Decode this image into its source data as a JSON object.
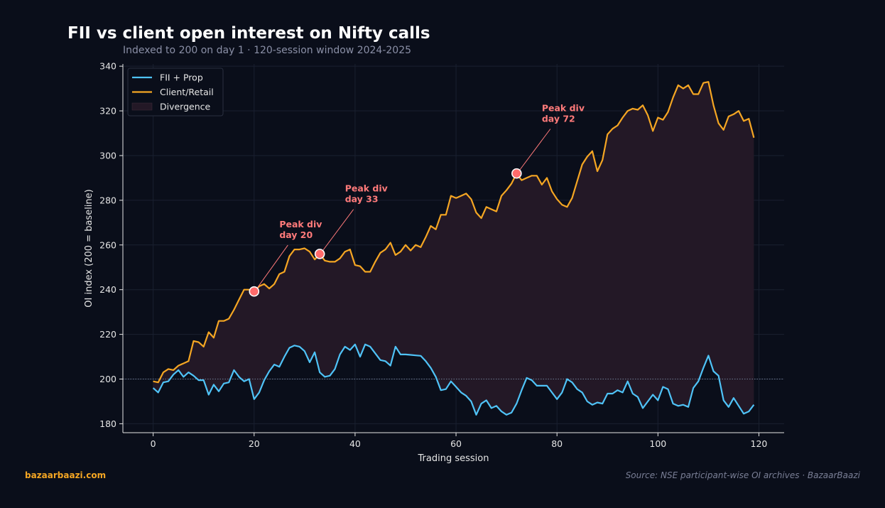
{
  "title": "FII vs client open interest on Nifty calls",
  "subtitle": "Indexed to 200 on day 1  ·  120-session window 2024-2025",
  "footer": {
    "brand": "bazaarbaazi.com",
    "source": "Source: NSE participant-wise OI archives  ·  BazaarBaazi"
  },
  "colors": {
    "background": "#0a0e1a",
    "fii": "#4fc3f7",
    "client": "#f5a623",
    "divergence_fill": "#231826",
    "marker": "#ff6b6b",
    "annotation": "#ff7a7a",
    "brand": "#f5a623"
  },
  "chart_data": {
    "type": "line",
    "xlabel": "Trading session",
    "ylabel": "OI index (200 = baseline)",
    "xlim": [
      -6,
      125
    ],
    "ylim": [
      176,
      341
    ],
    "xticks": [
      0,
      20,
      40,
      60,
      80,
      100,
      120
    ],
    "yticks": [
      180,
      200,
      220,
      240,
      260,
      280,
      300,
      320,
      340
    ],
    "baseline": 200,
    "grid": true,
    "legend_position": "top-left",
    "x": [
      0,
      1,
      2,
      3,
      4,
      5,
      6,
      7,
      8,
      9,
      10,
      11,
      12,
      13,
      14,
      15,
      16,
      17,
      18,
      19,
      20,
      21,
      22,
      23,
      24,
      25,
      26,
      27,
      28,
      29,
      30,
      31,
      32,
      33,
      34,
      35,
      36,
      37,
      38,
      39,
      40,
      41,
      42,
      43,
      44,
      45,
      46,
      47,
      48,
      49,
      50,
      51,
      52,
      53,
      54,
      55,
      56,
      57,
      58,
      59,
      60,
      61,
      62,
      63,
      64,
      65,
      66,
      67,
      68,
      69,
      70,
      71,
      72,
      73,
      74,
      75,
      76,
      77,
      78,
      79,
      80,
      81,
      82,
      83,
      84,
      85,
      86,
      87,
      88,
      89,
      90,
      91,
      92,
      93,
      94,
      95,
      96,
      97,
      98,
      99,
      100,
      101,
      102,
      103,
      104,
      105,
      106,
      107,
      108,
      109,
      110,
      111,
      112,
      113,
      114,
      115,
      116,
      117,
      118,
      119
    ],
    "series": [
      {
        "name": "FII + Prop",
        "values": [
          196,
          194,
          198.5,
          199,
          202,
          204,
          201,
          203,
          201.5,
          199.5,
          199.5,
          193,
          197.5,
          194.5,
          198,
          198.5,
          204,
          201,
          199,
          200,
          191,
          194,
          199.5,
          203.5,
          206.5,
          205.5,
          210,
          214,
          215,
          214.5,
          212.5,
          207.5,
          212,
          203,
          201,
          201.5,
          204.5,
          211,
          214.5,
          213,
          215.5,
          210,
          215.5,
          214.5,
          211.5,
          208.5,
          208,
          206,
          214.5,
          211,
          211,
          210.8,
          210.6,
          210.4,
          208,
          205,
          201,
          195,
          195.5,
          199,
          196.5,
          194,
          192.5,
          190,
          184,
          189,
          190.5,
          187,
          188,
          185.5,
          184,
          185,
          189,
          195,
          200.5,
          199.5,
          197,
          197,
          197,
          194,
          191,
          194,
          200,
          198.5,
          195.5,
          194,
          190,
          188.5,
          189.5,
          189,
          193.5,
          193.5,
          195,
          194,
          199,
          193.5,
          192,
          187,
          190,
          193,
          190.5,
          196.5,
          195.5,
          189,
          188,
          188.5,
          187.5,
          196,
          199,
          205,
          210.5,
          203.5,
          201.5,
          190.5,
          187.5,
          191.5,
          188,
          184.5,
          185.5,
          188.5
        ]
      },
      {
        "name": "Client/Retail",
        "values": [
          199,
          198.5,
          203,
          204.5,
          204,
          206,
          207,
          208,
          217,
          216.5,
          214.5,
          221,
          218.5,
          226,
          226,
          227,
          231,
          235.5,
          240,
          240,
          239,
          241.5,
          242.5,
          240.5,
          242.5,
          247,
          248,
          255,
          258,
          258,
          258.5,
          257,
          253.5,
          256,
          253,
          252.5,
          252.5,
          254,
          257,
          258,
          251,
          250.5,
          248,
          248,
          252.5,
          256.5,
          258,
          261,
          255.5,
          257,
          260,
          257.5,
          260,
          259,
          263.5,
          268.5,
          267,
          273.5,
          273.5,
          282,
          281,
          282,
          283,
          280.5,
          274.5,
          272,
          277,
          276,
          275,
          282,
          284.5,
          287.5,
          292,
          289,
          290,
          291,
          291,
          287,
          290,
          284,
          280.5,
          278,
          277,
          281,
          288.5,
          296,
          299.5,
          302,
          293,
          298,
          309.5,
          312,
          313.5,
          317,
          320,
          321,
          320.5,
          322.5,
          318,
          311,
          317,
          316,
          319.5,
          326,
          331.5,
          330,
          331.5,
          327.5,
          327.5,
          332.5,
          333,
          322.5,
          314.5,
          311.5,
          317.5,
          318.5,
          320,
          315.5,
          316.5,
          308
        ]
      }
    ],
    "legend": [
      "FII + Prop",
      "Client/Retail",
      "Divergence"
    ],
    "annotations": [
      {
        "label": "Peak div\nday 20",
        "x": 20,
        "y": 239.2,
        "text_x": 25,
        "text_y": 265
      },
      {
        "label": "Peak div\nday 33",
        "x": 33,
        "y": 256,
        "text_x": 38,
        "text_y": 281
      },
      {
        "label": "Peak div\nday 72",
        "x": 72,
        "y": 292,
        "text_x": 77,
        "text_y": 317
      }
    ]
  }
}
